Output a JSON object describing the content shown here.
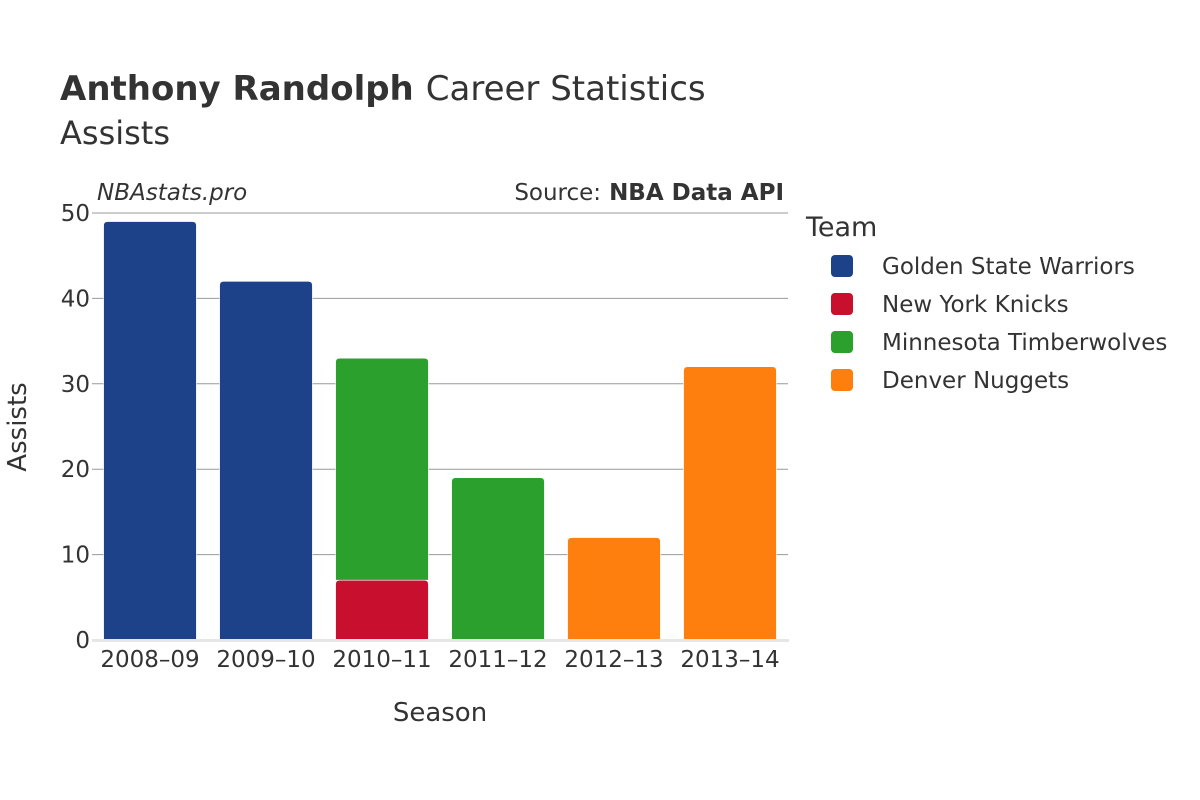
{
  "header": {
    "title_bold": "Anthony Randolph",
    "title_rest": "Career Statistics",
    "subtitle": "Assists",
    "credit": "NBAstats.pro",
    "source_prefix": "Source:",
    "source_name": "NBA Data API"
  },
  "legend": {
    "title": "Team"
  },
  "chart_data": {
    "type": "bar",
    "stacked": true,
    "title": "Anthony Randolph Career Statistics",
    "subtitle": "Assists",
    "xlabel": "Season",
    "ylabel": "Assists",
    "ylim": [
      0,
      50
    ],
    "yticks": [
      0,
      10,
      20,
      30,
      40,
      50
    ],
    "grid": true,
    "legend_position": "right",
    "categories": [
      "2008–09",
      "2009–10",
      "2010–11",
      "2011–12",
      "2012–13",
      "2013–14"
    ],
    "series": [
      {
        "name": "Golden State Warriors",
        "color": "#1d428a",
        "values": [
          49,
          42,
          0,
          0,
          0,
          0
        ]
      },
      {
        "name": "New York Knicks",
        "color": "#c8102e",
        "values": [
          0,
          0,
          7,
          0,
          0,
          0
        ]
      },
      {
        "name": "Minnesota Timberwolves",
        "color": "#2ca02c",
        "values": [
          0,
          0,
          26,
          19,
          0,
          0
        ]
      },
      {
        "name": "Denver Nuggets",
        "color": "#ff7f0e",
        "values": [
          0,
          0,
          0,
          0,
          12,
          32
        ]
      }
    ]
  }
}
